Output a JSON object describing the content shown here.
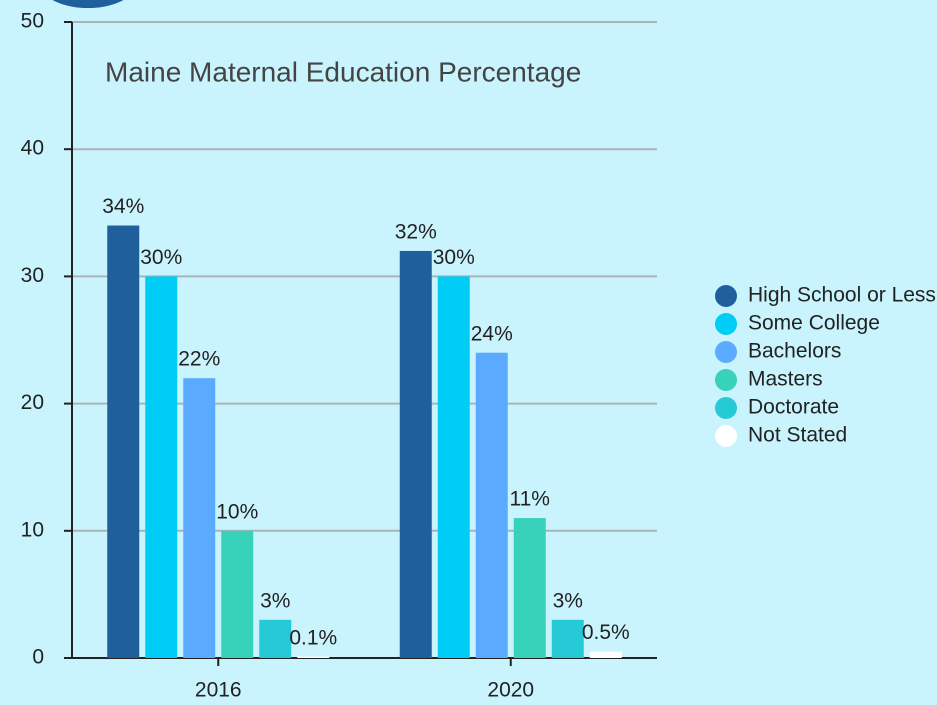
{
  "chart_data": {
    "type": "bar",
    "title": "Maine Maternal Education Percentage",
    "categories": [
      "2016",
      "2020"
    ],
    "series": [
      {
        "name": "High School or Less",
        "color": "#1e5f9c",
        "values": [
          34,
          32
        ],
        "value_labels": [
          "34%",
          "32%"
        ]
      },
      {
        "name": "Some College",
        "color": "#00cdf5",
        "values": [
          30,
          30
        ],
        "value_labels": [
          "30%",
          "30%"
        ]
      },
      {
        "name": "Bachelors",
        "color": "#5aabff",
        "values": [
          22,
          24
        ],
        "value_labels": [
          "22%",
          "24%"
        ]
      },
      {
        "name": "Masters",
        "color": "#38d1b9",
        "values": [
          10,
          11
        ],
        "value_labels": [
          "10%",
          "11%"
        ]
      },
      {
        "name": "Doctorate",
        "color": "#26c9d6",
        "values": [
          3,
          3
        ],
        "value_labels": [
          "3%",
          "3%"
        ]
      },
      {
        "name": "Not Stated",
        "color": "#ffffff",
        "values": [
          0.1,
          0.5
        ],
        "value_labels": [
          "0.1%",
          "0.5%"
        ]
      }
    ],
    "ylim": [
      0,
      50
    ],
    "yticks": [
      0,
      10,
      20,
      30,
      40,
      50
    ],
    "grid": true,
    "legend": "right"
  }
}
